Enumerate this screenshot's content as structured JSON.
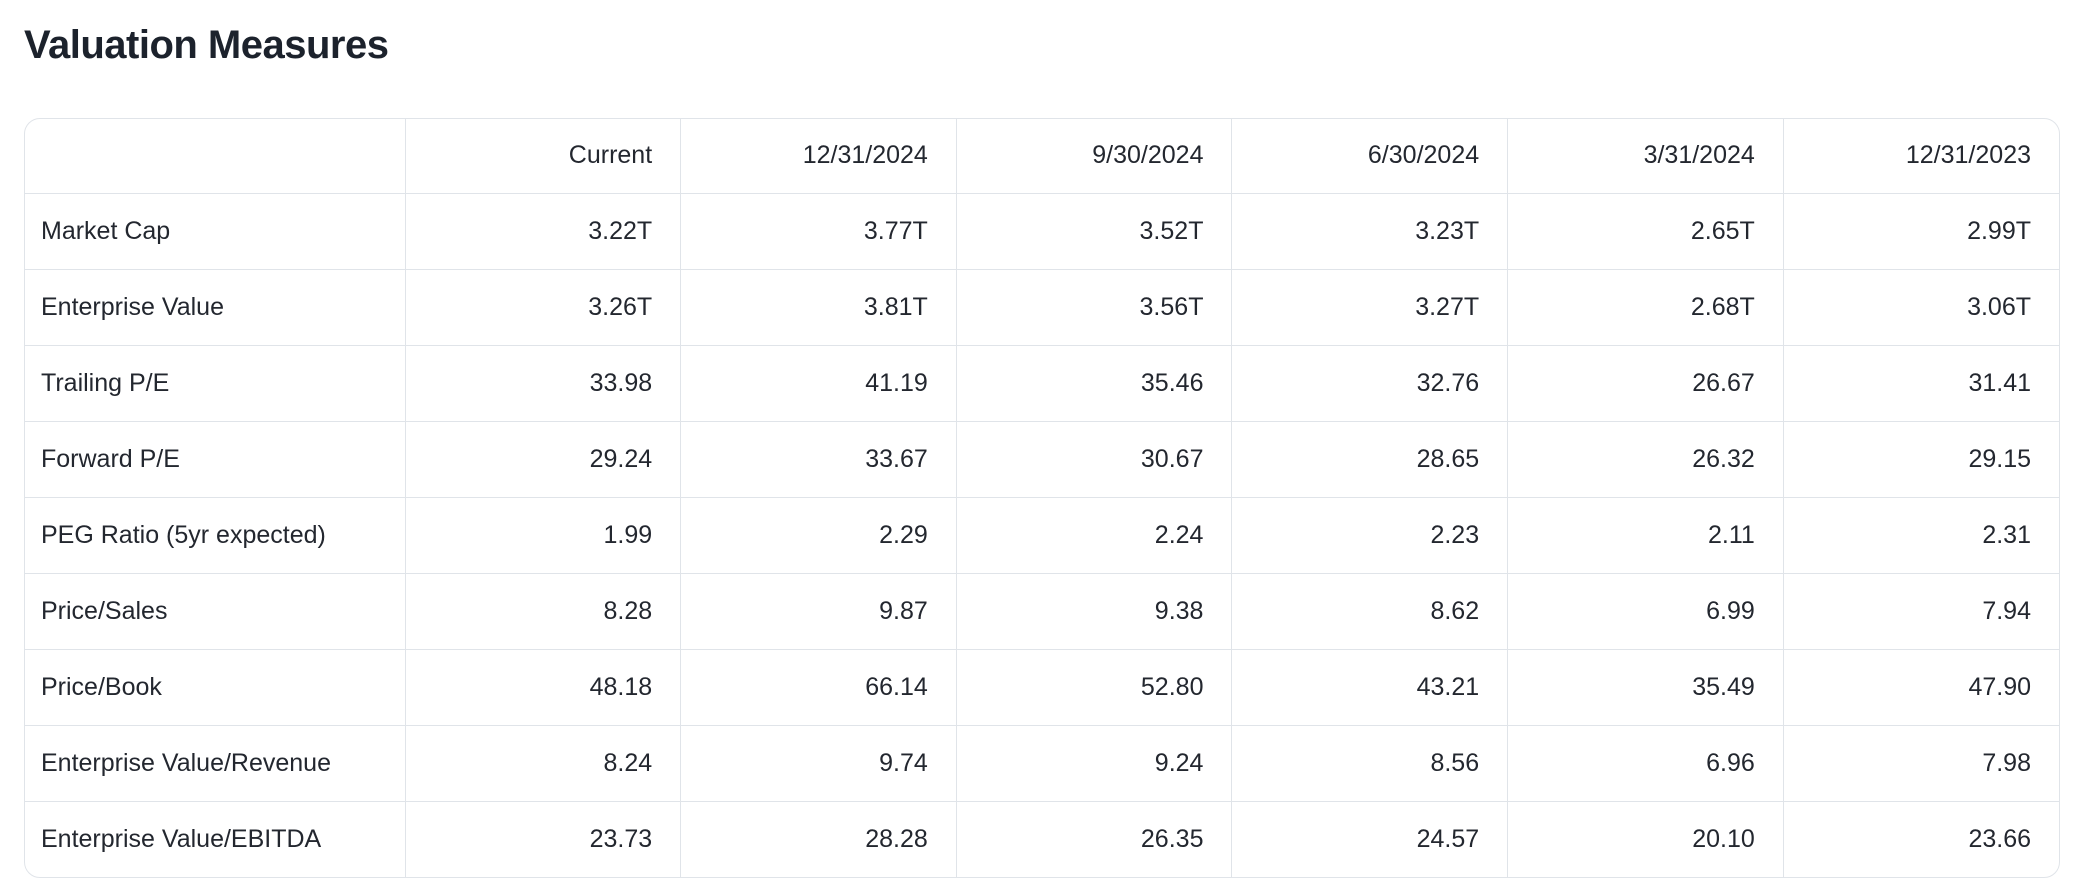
{
  "page": {
    "title": "Valuation Measures"
  },
  "colors": {
    "bg": "#ffffff",
    "text": "#23272f",
    "title": "#1c222c",
    "border": "#e0e4e9"
  },
  "table": {
    "columns": [
      "",
      "Current",
      "12/31/2024",
      "9/30/2024",
      "6/30/2024",
      "3/31/2024",
      "12/31/2023"
    ],
    "rows": [
      {
        "label": "Market Cap",
        "values": [
          "3.22T",
          "3.77T",
          "3.52T",
          "3.23T",
          "2.65T",
          "2.99T"
        ]
      },
      {
        "label": "Enterprise Value",
        "values": [
          "3.26T",
          "3.81T",
          "3.56T",
          "3.27T",
          "2.68T",
          "3.06T"
        ]
      },
      {
        "label": "Trailing P/E",
        "values": [
          "33.98",
          "41.19",
          "35.46",
          "32.76",
          "26.67",
          "31.41"
        ]
      },
      {
        "label": "Forward P/E",
        "values": [
          "29.24",
          "33.67",
          "30.67",
          "28.65",
          "26.32",
          "29.15"
        ]
      },
      {
        "label": "PEG Ratio (5yr expected)",
        "values": [
          "1.99",
          "2.29",
          "2.24",
          "2.23",
          "2.11",
          "2.31"
        ]
      },
      {
        "label": "Price/Sales",
        "values": [
          "8.28",
          "9.87",
          "9.38",
          "8.62",
          "6.99",
          "7.94"
        ]
      },
      {
        "label": "Price/Book",
        "values": [
          "48.18",
          "66.14",
          "52.80",
          "43.21",
          "35.49",
          "47.90"
        ]
      },
      {
        "label": "Enterprise Value/Revenue",
        "values": [
          "8.24",
          "9.74",
          "9.24",
          "8.56",
          "6.96",
          "7.98"
        ]
      },
      {
        "label": "Enterprise Value/EBITDA",
        "values": [
          "23.73",
          "28.28",
          "26.35",
          "24.57",
          "20.10",
          "23.66"
        ]
      }
    ]
  }
}
